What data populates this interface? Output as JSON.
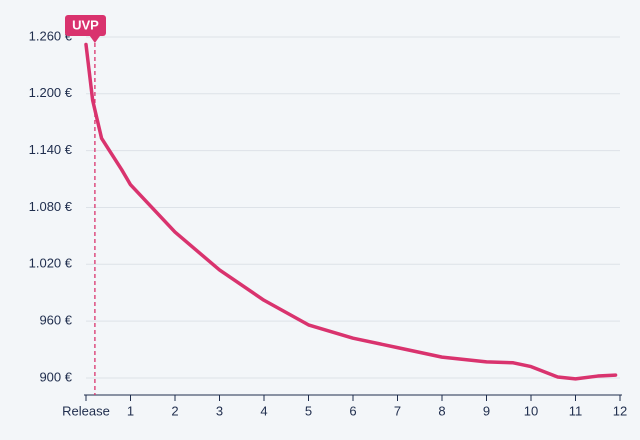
{
  "chart_data": {
    "type": "line",
    "x": [
      0,
      0.15,
      0.35,
      0.8,
      1,
      2,
      3,
      4,
      5,
      6,
      7,
      8,
      9,
      9.6,
      10,
      10.6,
      11,
      11.5,
      11.9
    ],
    "series": [
      {
        "color": "#d9336e",
        "values": [
          1252,
          1193,
          1153,
          1120,
          1104,
          1054,
          1014,
          982,
          956,
          942,
          932,
          922,
          917,
          916,
          912,
          901,
          899,
          902,
          903
        ]
      }
    ],
    "xlim": [
      0,
      12
    ],
    "xticks": [
      {
        "value": 0,
        "label": "Release"
      },
      1,
      2,
      3,
      4,
      5,
      6,
      7,
      8,
      9,
      10,
      11,
      12
    ],
    "ylim": [
      882,
      1280
    ],
    "yticks": [
      {
        "value": 900,
        "label": "900 €"
      },
      {
        "value": 960,
        "label": "960 €"
      },
      {
        "value": 1020,
        "label": "1.020 €"
      },
      {
        "value": 1080,
        "label": "1.080 €"
      },
      {
        "value": 1140,
        "label": "1.140 €"
      },
      {
        "value": 1200,
        "label": "1.200 €"
      },
      {
        "value": 1260,
        "label": "1.260 €"
      }
    ],
    "grid": true,
    "annotation": {
      "label": "UVP",
      "x": 0.2
    }
  }
}
